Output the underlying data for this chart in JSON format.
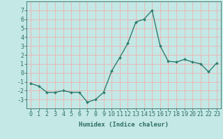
{
  "x": [
    0,
    1,
    2,
    3,
    4,
    5,
    6,
    7,
    8,
    9,
    10,
    11,
    12,
    13,
    14,
    15,
    16,
    17,
    18,
    19,
    20,
    21,
    22,
    23
  ],
  "y": [
    -1.2,
    -1.5,
    -2.2,
    -2.2,
    -2.0,
    -2.2,
    -2.2,
    -3.3,
    -3.0,
    -2.2,
    0.2,
    1.7,
    3.3,
    5.7,
    6.0,
    7.0,
    3.0,
    1.3,
    1.2,
    1.5,
    1.2,
    1.0,
    0.1,
    1.1
  ],
  "line_color": "#2e7d6e",
  "marker": "D",
  "marker_size": 2.0,
  "bg_color": "#c4e8e5",
  "grid_color": "#e8b8b8",
  "xlabel": "Humidex (Indice chaleur)",
  "ylim": [
    -4,
    8
  ],
  "xlim": [
    -0.5,
    23.5
  ],
  "yticks": [
    -3,
    -2,
    -1,
    0,
    1,
    2,
    3,
    4,
    5,
    6,
    7
  ],
  "xticks": [
    0,
    1,
    2,
    3,
    4,
    5,
    6,
    7,
    8,
    9,
    10,
    11,
    12,
    13,
    14,
    15,
    16,
    17,
    18,
    19,
    20,
    21,
    22,
    23
  ],
  "tick_color": "#2e6e64",
  "label_fontsize": 6.0,
  "axis_fontsize": 6.5
}
